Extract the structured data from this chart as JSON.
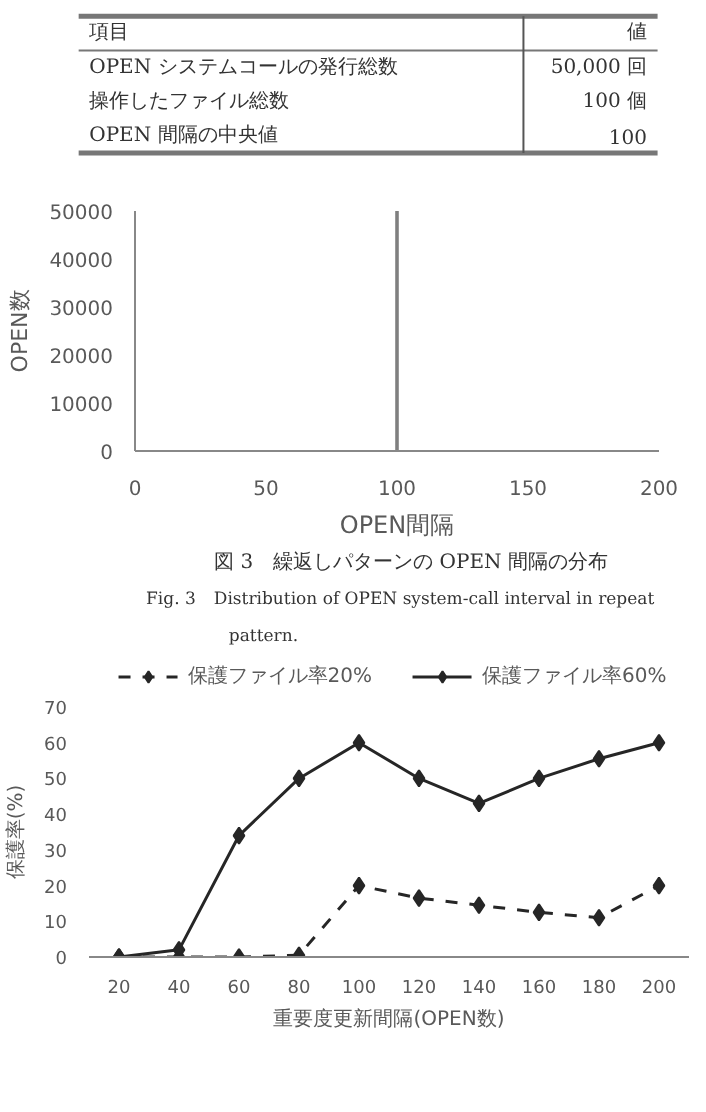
{
  "chart_data": [
    {
      "type": "other",
      "xlabel": "項目",
      "ylabel": "値",
      "categories": [
        "OPEN システムコールの発行総数",
        "操作したファイル総数",
        "OPEN 間隔の中央値"
      ],
      "value_labels": [
        "50,000 回",
        "100 個",
        "100"
      ]
    },
    {
      "type": "bar",
      "x": [
        100
      ],
      "values": [
        50000
      ],
      "color": "#7f7f7f",
      "xlabel": "OPEN間隔",
      "ylabel": "OPEN数",
      "xlim": [
        0,
        200
      ],
      "xticks": [
        0,
        50,
        100,
        150,
        200
      ],
      "ylim": [
        0,
        50000
      ],
      "yticks": [
        0,
        10000,
        20000,
        30000,
        40000,
        50000
      ],
      "grid": false,
      "annotations": [
        "図 3　繰返しパターンの OPEN 間隔の分布",
        "Fig. 3　Distribution of OPEN system-call interval in repeat pattern."
      ]
    },
    {
      "type": "line",
      "categories": [
        "20",
        "40",
        "60",
        "80",
        "100",
        "120",
        "140",
        "160",
        "180",
        "200"
      ],
      "xlabel": "重要度更新間隔(OPEN数)",
      "ylabel": "保護率(%)",
      "ylim": [
        0,
        70
      ],
      "yticks": [
        0,
        10,
        20,
        30,
        40,
        50,
        60,
        70
      ],
      "grid": false,
      "legend": "top",
      "marker": "diamond",
      "series": [
        {
          "name": "保護ファイル率20%",
          "color": "#262626",
          "line_style": "dashed",
          "values": [
            0,
            0,
            0,
            0.5,
            20,
            16.5,
            14.5,
            12.5,
            11,
            20
          ]
        },
        {
          "name": "保護ファイル率60%",
          "color": "#262626",
          "line_style": "solid",
          "values": [
            0,
            2,
            34,
            50,
            60,
            50,
            43,
            50,
            55.5,
            60
          ]
        }
      ]
    }
  ]
}
